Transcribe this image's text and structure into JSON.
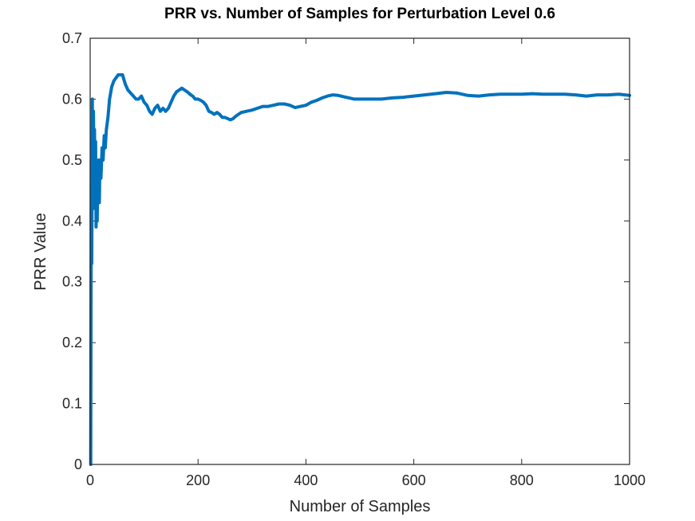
{
  "chart_data": {
    "type": "line",
    "title": "PRR vs. Number of Samples for Perturbation Level 0.6",
    "xlabel": "Number of Samples",
    "ylabel": "PRR Value",
    "xlim": [
      0,
      1000
    ],
    "ylim": [
      0,
      0.7
    ],
    "xticks": [
      0,
      200,
      400,
      600,
      800,
      1000
    ],
    "yticks": [
      0,
      0.1,
      0.2,
      0.3,
      0.4,
      0.5,
      0.6,
      0.7
    ],
    "grid": false,
    "legend": "none",
    "line_color": "#0072BD",
    "series": [
      {
        "x": [
          1,
          2,
          3,
          4,
          5,
          6,
          7,
          8,
          9,
          10,
          11,
          12,
          13,
          14,
          15,
          16,
          17,
          18,
          20,
          22,
          24,
          26,
          28,
          30,
          33,
          36,
          40,
          44,
          48,
          52,
          56,
          60,
          65,
          70,
          75,
          80,
          85,
          90,
          95,
          100,
          105,
          110,
          115,
          120,
          125,
          130,
          135,
          140,
          145,
          150,
          155,
          160,
          165,
          170,
          175,
          180,
          185,
          190,
          195,
          200,
          205,
          210,
          215,
          220,
          225,
          230,
          235,
          240,
          245,
          250,
          255,
          260,
          265,
          270,
          275,
          280,
          290,
          300,
          310,
          320,
          330,
          340,
          350,
          360,
          370,
          380,
          390,
          400,
          410,
          420,
          430,
          440,
          450,
          460,
          470,
          480,
          490,
          500,
          520,
          540,
          560,
          580,
          600,
          620,
          640,
          660,
          680,
          700,
          720,
          740,
          760,
          780,
          800,
          820,
          840,
          860,
          880,
          900,
          920,
          940,
          960,
          980,
          1000
        ],
        "y": [
          0.0,
          0.5,
          0.33,
          0.6,
          0.42,
          0.58,
          0.5,
          0.55,
          0.48,
          0.53,
          0.39,
          0.5,
          0.4,
          0.47,
          0.45,
          0.5,
          0.43,
          0.5,
          0.47,
          0.52,
          0.5,
          0.54,
          0.52,
          0.55,
          0.57,
          0.6,
          0.62,
          0.63,
          0.635,
          0.64,
          0.64,
          0.64,
          0.625,
          0.615,
          0.61,
          0.605,
          0.6,
          0.6,
          0.605,
          0.595,
          0.59,
          0.58,
          0.575,
          0.585,
          0.59,
          0.58,
          0.585,
          0.58,
          0.585,
          0.595,
          0.605,
          0.612,
          0.615,
          0.618,
          0.615,
          0.612,
          0.608,
          0.605,
          0.6,
          0.6,
          0.598,
          0.595,
          0.59,
          0.58,
          0.578,
          0.575,
          0.578,
          0.575,
          0.57,
          0.57,
          0.568,
          0.566,
          0.568,
          0.572,
          0.575,
          0.578,
          0.58,
          0.582,
          0.585,
          0.588,
          0.588,
          0.59,
          0.592,
          0.592,
          0.59,
          0.586,
          0.588,
          0.59,
          0.595,
          0.598,
          0.602,
          0.605,
          0.607,
          0.606,
          0.604,
          0.602,
          0.6,
          0.6,
          0.6,
          0.6,
          0.602,
          0.603,
          0.605,
          0.607,
          0.609,
          0.611,
          0.61,
          0.606,
          0.605,
          0.607,
          0.608,
          0.608,
          0.608,
          0.609,
          0.608,
          0.608,
          0.608,
          0.607,
          0.605,
          0.607,
          0.607,
          0.608,
          0.606
        ]
      }
    ]
  }
}
